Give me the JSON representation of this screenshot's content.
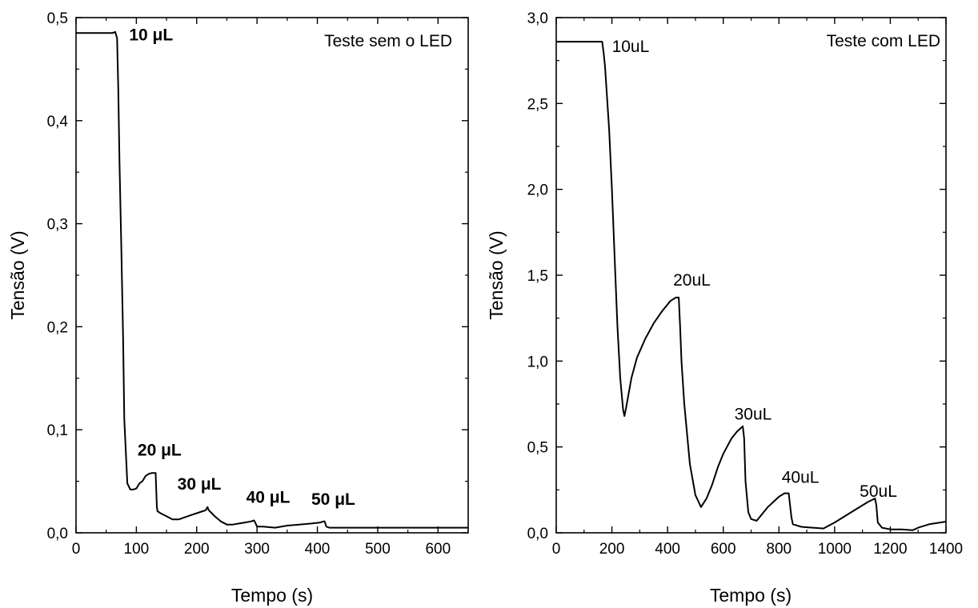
{
  "chart_data": [
    {
      "type": "line",
      "title": "",
      "legend_text": "Teste sem o LED",
      "legend_position": "top-right",
      "xlabel": "Tempo (s)",
      "ylabel": "Tensão (V)",
      "xlim": [
        0,
        650
      ],
      "ylim": [
        0,
        0.5
      ],
      "grid": false,
      "x_major_ticks": [
        0,
        100,
        200,
        300,
        400,
        500,
        600
      ],
      "x_tick_labels": [
        "0",
        "100",
        "200",
        "300",
        "400",
        "500",
        "600"
      ],
      "y_major_ticks": [
        0,
        0.1,
        0.2,
        0.3,
        0.4,
        0.5
      ],
      "y_tick_labels": [
        "0,0",
        "0,1",
        "0,2",
        "0,3",
        "0,4",
        "0,5"
      ],
      "annotations": [
        {
          "text": "10 μL",
          "x": 88,
          "y": 0.478,
          "bold": true
        },
        {
          "text": "20 μL",
          "x": 102,
          "y": 0.075,
          "bold": true
        },
        {
          "text": "30 μL",
          "x": 168,
          "y": 0.042,
          "bold": true
        },
        {
          "text": "40 μL",
          "x": 282,
          "y": 0.029,
          "bold": true
        },
        {
          "text": "50 μL",
          "x": 390,
          "y": 0.027,
          "bold": true
        }
      ],
      "series": [
        {
          "x": [
            0,
            20,
            40,
            60,
            65,
            68,
            70,
            72,
            75,
            78,
            80,
            85,
            90,
            95,
            100,
            105,
            110,
            115,
            120,
            125,
            130,
            132,
            133,
            134,
            135,
            140,
            150,
            160,
            170,
            180,
            190,
            200,
            210,
            215,
            218,
            220,
            225,
            230,
            240,
            250,
            260,
            270,
            280,
            290,
            295,
            297,
            300,
            310,
            330,
            350,
            370,
            390,
            405,
            410,
            412,
            415,
            420,
            450,
            500,
            550,
            600,
            650
          ],
          "values": [
            0.485,
            0.485,
            0.485,
            0.485,
            0.486,
            0.48,
            0.43,
            0.36,
            0.28,
            0.19,
            0.11,
            0.048,
            0.042,
            0.042,
            0.043,
            0.048,
            0.05,
            0.055,
            0.057,
            0.058,
            0.058,
            0.058,
            0.04,
            0.025,
            0.021,
            0.019,
            0.016,
            0.013,
            0.013,
            0.015,
            0.017,
            0.019,
            0.021,
            0.022,
            0.025,
            0.022,
            0.019,
            0.016,
            0.011,
            0.008,
            0.008,
            0.009,
            0.01,
            0.011,
            0.012,
            0.01,
            0.006,
            0.006,
            0.005,
            0.007,
            0.008,
            0.009,
            0.01,
            0.011,
            0.011,
            0.006,
            0.005,
            0.005,
            0.005,
            0.005,
            0.005,
            0.005
          ]
        }
      ]
    },
    {
      "type": "line",
      "title": "",
      "legend_text": "Teste com LED",
      "legend_position": "top-right",
      "xlabel": "Tempo (s)",
      "ylabel": "Tensão (V)",
      "xlim": [
        0,
        1400
      ],
      "ylim": [
        0,
        3.0
      ],
      "grid": false,
      "x_major_ticks": [
        0,
        200,
        400,
        600,
        800,
        1000,
        1200,
        1400
      ],
      "x_tick_labels": [
        "0",
        "200",
        "400",
        "600",
        "800",
        "1000",
        "1200",
        "1400"
      ],
      "y_major_ticks": [
        0,
        0.5,
        1.0,
        1.5,
        2.0,
        2.5,
        3.0
      ],
      "y_tick_labels": [
        "0,0",
        "0,5",
        "1,0",
        "1,5",
        "2,0",
        "2,5",
        "3,0"
      ],
      "annotations": [
        {
          "text": "10uL",
          "x": 200,
          "y": 2.8,
          "bold": false
        },
        {
          "text": "20uL",
          "x": 420,
          "y": 1.44,
          "bold": false
        },
        {
          "text": "30uL",
          "x": 640,
          "y": 0.66,
          "bold": false
        },
        {
          "text": "40uL",
          "x": 810,
          "y": 0.29,
          "bold": false
        },
        {
          "text": "50uL",
          "x": 1090,
          "y": 0.21,
          "bold": false
        }
      ],
      "series": [
        {
          "x": [
            0,
            50,
            100,
            150,
            165,
            170,
            175,
            180,
            190,
            200,
            210,
            220,
            230,
            240,
            245,
            250,
            270,
            290,
            320,
            350,
            380,
            410,
            430,
            440,
            445,
            450,
            460,
            480,
            500,
            520,
            540,
            560,
            580,
            600,
            630,
            650,
            670,
            675,
            680,
            690,
            700,
            720,
            740,
            760,
            780,
            800,
            820,
            835,
            840,
            845,
            850,
            880,
            920,
            960,
            1000,
            1040,
            1080,
            1120,
            1145,
            1150,
            1155,
            1170,
            1200,
            1240,
            1280,
            1300,
            1340,
            1380,
            1400
          ],
          "values": [
            2.86,
            2.86,
            2.86,
            2.86,
            2.86,
            2.8,
            2.72,
            2.6,
            2.35,
            2.0,
            1.6,
            1.2,
            0.9,
            0.72,
            0.68,
            0.72,
            0.9,
            1.02,
            1.13,
            1.22,
            1.29,
            1.35,
            1.37,
            1.37,
            1.2,
            1.0,
            0.75,
            0.4,
            0.22,
            0.15,
            0.2,
            0.28,
            0.38,
            0.46,
            0.55,
            0.59,
            0.62,
            0.55,
            0.3,
            0.12,
            0.08,
            0.07,
            0.11,
            0.15,
            0.18,
            0.21,
            0.23,
            0.23,
            0.16,
            0.09,
            0.05,
            0.035,
            0.03,
            0.025,
            0.06,
            0.1,
            0.14,
            0.18,
            0.2,
            0.16,
            0.06,
            0.03,
            0.02,
            0.02,
            0.015,
            0.03,
            0.05,
            0.06,
            0.065
          ]
        }
      ]
    }
  ]
}
